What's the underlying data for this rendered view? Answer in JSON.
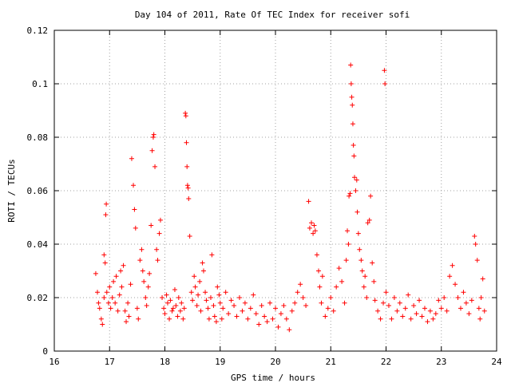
{
  "chart_data": {
    "type": "scatter",
    "title": "Day 104 of 2011, Rate Of TEC Index for receiver sofi",
    "xlabel": "GPS time / hours",
    "ylabel": "ROTI / TECUs",
    "xlim": [
      16,
      24
    ],
    "ylim": [
      0,
      0.12
    ],
    "x_ticks": [
      16,
      17,
      18,
      19,
      20,
      21,
      22,
      23,
      24
    ],
    "x_tick_labels": [
      "16",
      "17",
      "18",
      "19",
      "20",
      "21",
      "22",
      "23",
      "24"
    ],
    "y_ticks": [
      0,
      0.02,
      0.04,
      0.06,
      0.08,
      0.1,
      0.12
    ],
    "y_tick_labels": [
      "0",
      "0.02",
      "0.04",
      "0.06",
      "0.08",
      "0.1",
      "0.12"
    ],
    "grid": true,
    "marker_color": "#ff0000",
    "series": [
      {
        "name": "ROTI",
        "marker": "+",
        "points": [
          [
            16.75,
            0.029
          ],
          [
            16.78,
            0.022
          ],
          [
            16.8,
            0.018
          ],
          [
            16.82,
            0.016
          ],
          [
            16.85,
            0.012
          ],
          [
            16.87,
            0.01
          ],
          [
            16.9,
            0.02
          ],
          [
            16.9,
            0.036
          ],
          [
            16.92,
            0.033
          ],
          [
            16.93,
            0.051
          ],
          [
            16.94,
            0.055
          ],
          [
            16.95,
            0.022
          ],
          [
            16.98,
            0.018
          ],
          [
            17.0,
            0.024
          ],
          [
            17.02,
            0.016
          ],
          [
            17.05,
            0.02
          ],
          [
            17.07,
            0.026
          ],
          [
            17.1,
            0.018
          ],
          [
            17.12,
            0.028
          ],
          [
            17.15,
            0.015
          ],
          [
            17.18,
            0.021
          ],
          [
            17.2,
            0.03
          ],
          [
            17.22,
            0.024
          ],
          [
            17.25,
            0.032
          ],
          [
            17.28,
            0.015
          ],
          [
            17.3,
            0.011
          ],
          [
            17.33,
            0.018
          ],
          [
            17.35,
            0.013
          ],
          [
            17.38,
            0.025
          ],
          [
            17.4,
            0.072
          ],
          [
            17.43,
            0.062
          ],
          [
            17.45,
            0.053
          ],
          [
            17.47,
            0.046
          ],
          [
            17.5,
            0.016
          ],
          [
            17.52,
            0.012
          ],
          [
            17.55,
            0.034
          ],
          [
            17.58,
            0.038
          ],
          [
            17.6,
            0.03
          ],
          [
            17.62,
            0.026
          ],
          [
            17.65,
            0.02
          ],
          [
            17.67,
            0.017
          ],
          [
            17.7,
            0.024
          ],
          [
            17.72,
            0.029
          ],
          [
            17.75,
            0.047
          ],
          [
            17.77,
            0.075
          ],
          [
            17.79,
            0.08
          ],
          [
            17.8,
            0.081
          ],
          [
            17.82,
            0.069
          ],
          [
            17.85,
            0.038
          ],
          [
            17.87,
            0.034
          ],
          [
            17.9,
            0.044
          ],
          [
            17.92,
            0.049
          ],
          [
            17.95,
            0.02
          ],
          [
            17.98,
            0.016
          ],
          [
            18.0,
            0.014
          ],
          [
            18.03,
            0.021
          ],
          [
            18.05,
            0.018
          ],
          [
            18.08,
            0.012
          ],
          [
            18.1,
            0.019
          ],
          [
            18.13,
            0.015
          ],
          [
            18.15,
            0.016
          ],
          [
            18.18,
            0.023
          ],
          [
            18.2,
            0.017
          ],
          [
            18.23,
            0.013
          ],
          [
            18.25,
            0.02
          ],
          [
            18.28,
            0.015
          ],
          [
            18.3,
            0.018
          ],
          [
            18.33,
            0.012
          ],
          [
            18.35,
            0.016
          ],
          [
            18.37,
            0.089
          ],
          [
            18.38,
            0.088
          ],
          [
            18.39,
            0.078
          ],
          [
            18.4,
            0.069
          ],
          [
            18.41,
            0.062
          ],
          [
            18.42,
            0.061
          ],
          [
            18.43,
            0.057
          ],
          [
            18.45,
            0.043
          ],
          [
            18.48,
            0.022
          ],
          [
            18.5,
            0.019
          ],
          [
            18.53,
            0.028
          ],
          [
            18.55,
            0.024
          ],
          [
            18.58,
            0.017
          ],
          [
            18.6,
            0.021
          ],
          [
            18.63,
            0.026
          ],
          [
            18.65,
            0.015
          ],
          [
            18.68,
            0.033
          ],
          [
            18.7,
            0.03
          ],
          [
            18.73,
            0.022
          ],
          [
            18.75,
            0.019
          ],
          [
            18.78,
            0.016
          ],
          [
            18.8,
            0.012
          ],
          [
            18.83,
            0.02
          ],
          [
            18.85,
            0.036
          ],
          [
            18.88,
            0.017
          ],
          [
            18.9,
            0.013
          ],
          [
            18.93,
            0.011
          ],
          [
            18.95,
            0.024
          ],
          [
            18.98,
            0.021
          ],
          [
            19.0,
            0.018
          ],
          [
            19.03,
            0.012
          ],
          [
            19.05,
            0.016
          ],
          [
            19.1,
            0.022
          ],
          [
            19.15,
            0.014
          ],
          [
            19.2,
            0.019
          ],
          [
            19.25,
            0.017
          ],
          [
            19.3,
            0.013
          ],
          [
            19.35,
            0.02
          ],
          [
            19.4,
            0.015
          ],
          [
            19.45,
            0.018
          ],
          [
            19.5,
            0.012
          ],
          [
            19.55,
            0.016
          ],
          [
            19.6,
            0.021
          ],
          [
            19.65,
            0.014
          ],
          [
            19.7,
            0.01
          ],
          [
            19.75,
            0.017
          ],
          [
            19.8,
            0.013
          ],
          [
            19.85,
            0.011
          ],
          [
            19.9,
            0.018
          ],
          [
            19.95,
            0.012
          ],
          [
            20.0,
            0.016
          ],
          [
            20.05,
            0.009
          ],
          [
            20.1,
            0.014
          ],
          [
            20.15,
            0.017
          ],
          [
            20.2,
            0.012
          ],
          [
            20.25,
            0.008
          ],
          [
            20.3,
            0.015
          ],
          [
            20.35,
            0.018
          ],
          [
            20.4,
            0.022
          ],
          [
            20.45,
            0.025
          ],
          [
            20.5,
            0.02
          ],
          [
            20.55,
            0.017
          ],
          [
            20.6,
            0.056
          ],
          [
            20.62,
            0.046
          ],
          [
            20.65,
            0.048
          ],
          [
            20.68,
            0.044
          ],
          [
            20.7,
            0.047
          ],
          [
            20.72,
            0.045
          ],
          [
            20.75,
            0.036
          ],
          [
            20.78,
            0.03
          ],
          [
            20.8,
            0.024
          ],
          [
            20.83,
            0.018
          ],
          [
            20.85,
            0.028
          ],
          [
            20.9,
            0.013
          ],
          [
            20.95,
            0.016
          ],
          [
            21.0,
            0.02
          ],
          [
            21.05,
            0.015
          ],
          [
            21.1,
            0.024
          ],
          [
            21.15,
            0.031
          ],
          [
            21.2,
            0.026
          ],
          [
            21.25,
            0.018
          ],
          [
            21.28,
            0.034
          ],
          [
            21.3,
            0.045
          ],
          [
            21.32,
            0.04
          ],
          [
            21.33,
            0.058
          ],
          [
            21.35,
            0.059
          ],
          [
            21.36,
            0.107
          ],
          [
            21.37,
            0.1
          ],
          [
            21.38,
            0.095
          ],
          [
            21.39,
            0.092
          ],
          [
            21.4,
            0.085
          ],
          [
            21.41,
            0.077
          ],
          [
            21.42,
            0.073
          ],
          [
            21.43,
            0.065
          ],
          [
            21.45,
            0.06
          ],
          [
            21.47,
            0.064
          ],
          [
            21.48,
            0.052
          ],
          [
            21.5,
            0.044
          ],
          [
            21.52,
            0.038
          ],
          [
            21.55,
            0.034
          ],
          [
            21.57,
            0.03
          ],
          [
            21.6,
            0.024
          ],
          [
            21.62,
            0.028
          ],
          [
            21.65,
            0.02
          ],
          [
            21.67,
            0.048
          ],
          [
            21.7,
            0.049
          ],
          [
            21.72,
            0.058
          ],
          [
            21.75,
            0.033
          ],
          [
            21.78,
            0.026
          ],
          [
            21.8,
            0.019
          ],
          [
            21.85,
            0.015
          ],
          [
            21.9,
            0.012
          ],
          [
            21.95,
            0.018
          ],
          [
            21.97,
            0.105
          ],
          [
            21.98,
            0.1
          ],
          [
            22.0,
            0.022
          ],
          [
            22.05,
            0.017
          ],
          [
            22.1,
            0.012
          ],
          [
            22.15,
            0.02
          ],
          [
            22.2,
            0.015
          ],
          [
            22.25,
            0.018
          ],
          [
            22.3,
            0.013
          ],
          [
            22.35,
            0.016
          ],
          [
            22.4,
            0.021
          ],
          [
            22.45,
            0.012
          ],
          [
            22.5,
            0.017
          ],
          [
            22.55,
            0.014
          ],
          [
            22.6,
            0.019
          ],
          [
            22.65,
            0.013
          ],
          [
            22.7,
            0.016
          ],
          [
            22.75,
            0.011
          ],
          [
            22.8,
            0.015
          ],
          [
            22.85,
            0.012
          ],
          [
            22.9,
            0.014
          ],
          [
            22.95,
            0.019
          ],
          [
            23.0,
            0.016
          ],
          [
            23.05,
            0.02
          ],
          [
            23.1,
            0.015
          ],
          [
            23.15,
            0.028
          ],
          [
            23.2,
            0.032
          ],
          [
            23.25,
            0.025
          ],
          [
            23.3,
            0.02
          ],
          [
            23.35,
            0.016
          ],
          [
            23.4,
            0.022
          ],
          [
            23.45,
            0.018
          ],
          [
            23.5,
            0.014
          ],
          [
            23.55,
            0.019
          ],
          [
            23.6,
            0.043
          ],
          [
            23.62,
            0.04
          ],
          [
            23.65,
            0.034
          ],
          [
            23.68,
            0.016
          ],
          [
            23.7,
            0.012
          ],
          [
            23.72,
            0.02
          ],
          [
            23.75,
            0.027
          ],
          [
            23.78,
            0.015
          ]
        ]
      }
    ]
  }
}
